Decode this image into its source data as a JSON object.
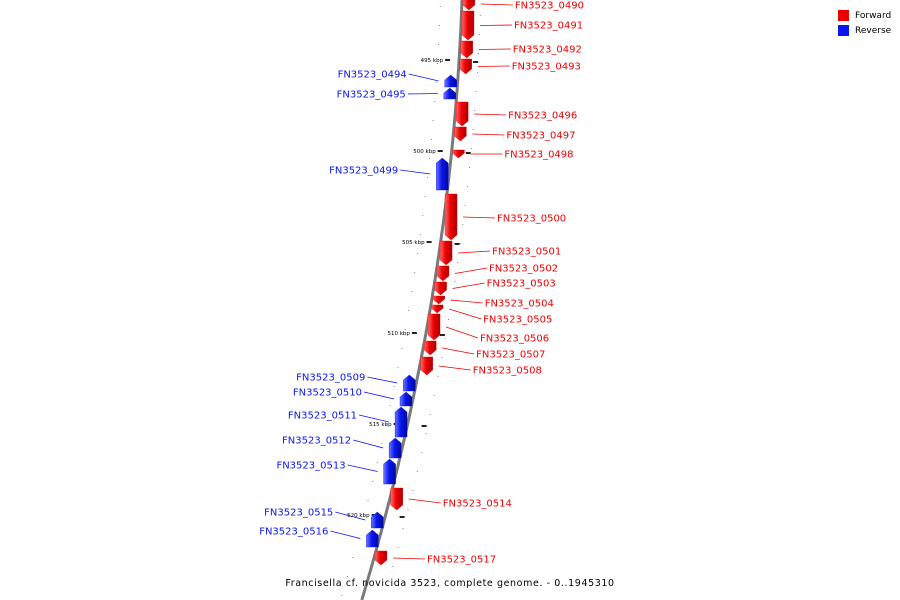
{
  "colors": {
    "forward": "#ee0000",
    "reverse": "#0a16ee",
    "backbone": "#7a7a7a"
  },
  "legend": [
    {
      "label": "Forward",
      "color": "#ee0000"
    },
    {
      "label": "Reverse",
      "color": "#0a16ee"
    }
  ],
  "caption": "Francisella cf. novicida 3523, complete genome. - 0..1945310",
  "scale_ticks": [
    {
      "label": "495 kbp",
      "position": 495
    },
    {
      "label": "500 kbp",
      "position": 500
    },
    {
      "label": "505 kbp",
      "position": 505
    },
    {
      "label": "510 kbp",
      "position": 510
    },
    {
      "label": "515 kbp",
      "position": 515
    },
    {
      "label": "520 kbp",
      "position": 520
    }
  ],
  "genes": [
    {
      "name": "FN3523_0490",
      "strand": "forward"
    },
    {
      "name": "FN3523_0491",
      "strand": "forward"
    },
    {
      "name": "FN3523_0492",
      "strand": "forward"
    },
    {
      "name": "FN3523_0493",
      "strand": "forward"
    },
    {
      "name": "FN3523_0494",
      "strand": "reverse"
    },
    {
      "name": "FN3523_0495",
      "strand": "reverse"
    },
    {
      "name": "FN3523_0496",
      "strand": "forward"
    },
    {
      "name": "FN3523_0497",
      "strand": "forward"
    },
    {
      "name": "FN3523_0498",
      "strand": "forward"
    },
    {
      "name": "FN3523_0499",
      "strand": "reverse"
    },
    {
      "name": "FN3523_0500",
      "strand": "forward"
    },
    {
      "name": "FN3523_0501",
      "strand": "forward"
    },
    {
      "name": "FN3523_0502",
      "strand": "forward"
    },
    {
      "name": "FN3523_0503",
      "strand": "forward"
    },
    {
      "name": "FN3523_0504",
      "strand": "forward"
    },
    {
      "name": "FN3523_0505",
      "strand": "forward"
    },
    {
      "name": "FN3523_0506",
      "strand": "forward"
    },
    {
      "name": "FN3523_0507",
      "strand": "forward"
    },
    {
      "name": "FN3523_0508",
      "strand": "forward"
    },
    {
      "name": "FN3523_0509",
      "strand": "reverse"
    },
    {
      "name": "FN3523_0510",
      "strand": "reverse"
    },
    {
      "name": "FN3523_0511",
      "strand": "reverse"
    },
    {
      "name": "FN3523_0512",
      "strand": "reverse"
    },
    {
      "name": "FN3523_0513",
      "strand": "reverse"
    },
    {
      "name": "FN3523_0514",
      "strand": "forward"
    },
    {
      "name": "FN3523_0515",
      "strand": "reverse"
    },
    {
      "name": "FN3523_0516",
      "strand": "reverse"
    },
    {
      "name": "FN3523_0517",
      "strand": "forward"
    }
  ]
}
